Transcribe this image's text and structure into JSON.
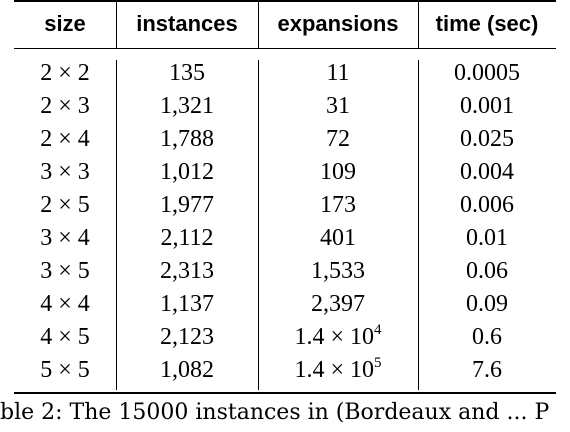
{
  "table": {
    "headers": [
      "size",
      "instances",
      "expansions",
      "time (sec)"
    ],
    "rows": [
      {
        "size": "2 × 2",
        "instances": "135",
        "expansions": "11",
        "time": "0.0005"
      },
      {
        "size": "2 × 3",
        "instances": "1,321",
        "expansions": "31",
        "time": "0.001"
      },
      {
        "size": "2 × 4",
        "instances": "1,788",
        "expansions": "72",
        "time": "0.025"
      },
      {
        "size": "3 × 3",
        "instances": "1,012",
        "expansions": "109",
        "time": "0.004"
      },
      {
        "size": "2 × 5",
        "instances": "1,977",
        "expansions": "173",
        "time": "0.006"
      },
      {
        "size": "3 × 4",
        "instances": "2,112",
        "expansions": "401",
        "time": "0.01"
      },
      {
        "size": "3 × 5",
        "instances": "2,313",
        "expansions": "1,533",
        "time": "0.06"
      },
      {
        "size": "4 × 4",
        "instances": "1,137",
        "expansions": "2,397",
        "time": "0.09"
      },
      {
        "size": "4 × 5",
        "instances": "2,123",
        "expansions": "1.4 × 10",
        "expansions_exp": "4",
        "time": "0.6"
      },
      {
        "size": "5 × 5",
        "instances": "1,082",
        "expansions": "1.4 × 10",
        "expansions_exp": "5",
        "time": "7.6"
      }
    ]
  },
  "caption": "ble 2: The 15000 instances in (Bordeaux and ... P"
}
